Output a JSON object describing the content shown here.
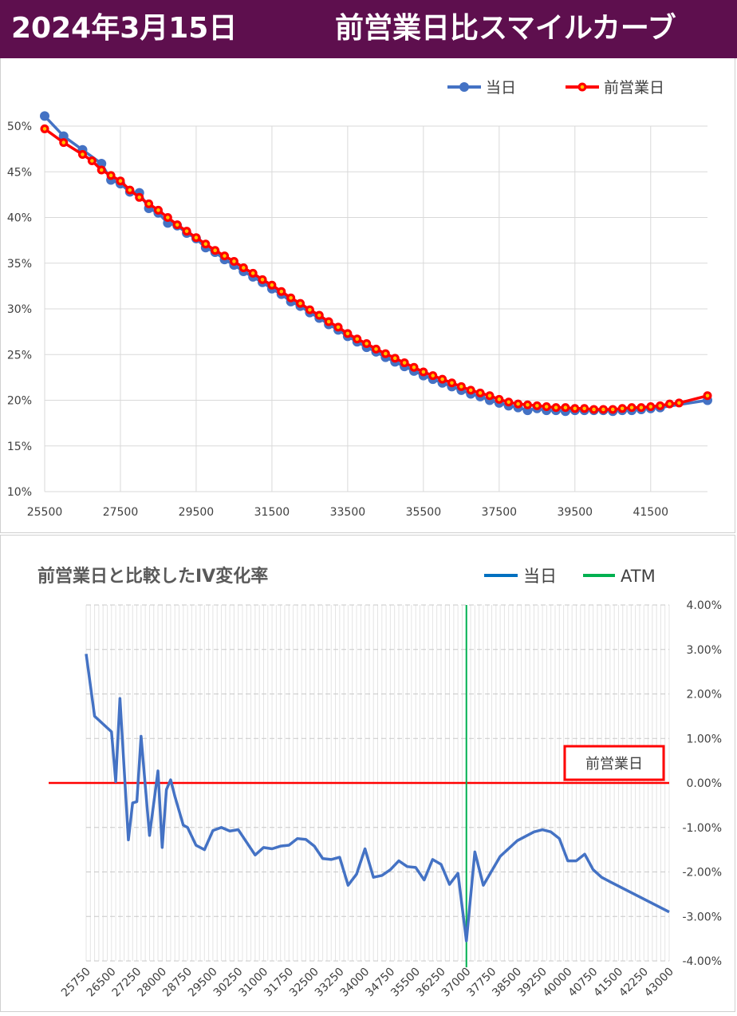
{
  "header": {
    "date": "2024年3月15日",
    "title": "前営業日比スマイルカーブ",
    "background": "#5e0f4e"
  },
  "chart_data": [
    {
      "type": "line",
      "title": "",
      "legend_position": "top-right",
      "grid": true,
      "xlim": [
        25500,
        43000
      ],
      "ylim": [
        0.1,
        0.5
      ],
      "x_ticks": [
        25500,
        27500,
        29500,
        31500,
        33500,
        35500,
        37500,
        39500,
        41500
      ],
      "x_tick_labels": [
        "25500",
        "27500",
        "29500",
        "31500",
        "33500",
        "35500",
        "37500",
        "39500",
        "41500"
      ],
      "y_ticks": [
        0.1,
        0.15,
        0.2,
        0.25,
        0.3,
        0.35,
        0.4,
        0.45,
        0.5
      ],
      "y_tick_labels": [
        "10%",
        "15%",
        "20%",
        "25%",
        "30%",
        "35%",
        "40%",
        "45%",
        "50%"
      ],
      "series": [
        {
          "name": "当日",
          "color": "#4472c4",
          "points": [
            [
              25500,
              0.511
            ],
            [
              26000,
              0.489
            ],
            [
              26500,
              0.474
            ],
            [
              27000,
              0.459
            ],
            [
              27250,
              0.441
            ],
            [
              27500,
              0.437
            ],
            [
              27750,
              0.428
            ],
            [
              28000,
              0.427
            ],
            [
              28250,
              0.41
            ],
            [
              28500,
              0.405
            ],
            [
              28750,
              0.394
            ],
            [
              29000,
              0.391
            ],
            [
              29250,
              0.383
            ],
            [
              29500,
              0.377
            ],
            [
              29750,
              0.367
            ],
            [
              30000,
              0.362
            ],
            [
              30250,
              0.354
            ],
            [
              30500,
              0.348
            ],
            [
              30750,
              0.341
            ],
            [
              31000,
              0.335
            ],
            [
              31250,
              0.329
            ],
            [
              31500,
              0.322
            ],
            [
              31750,
              0.316
            ],
            [
              32000,
              0.308
            ],
            [
              32250,
              0.303
            ],
            [
              32500,
              0.296
            ],
            [
              32750,
              0.29
            ],
            [
              33000,
              0.283
            ],
            [
              33250,
              0.277
            ],
            [
              33500,
              0.27
            ],
            [
              33750,
              0.264
            ],
            [
              34000,
              0.258
            ],
            [
              34250,
              0.253
            ],
            [
              34500,
              0.247
            ],
            [
              34750,
              0.242
            ],
            [
              35000,
              0.237
            ],
            [
              35250,
              0.232
            ],
            [
              35500,
              0.227
            ],
            [
              35750,
              0.223
            ],
            [
              36000,
              0.219
            ],
            [
              36250,
              0.215
            ],
            [
              36500,
              0.211
            ],
            [
              36750,
              0.207
            ],
            [
              37000,
              0.204
            ],
            [
              37250,
              0.2
            ],
            [
              37500,
              0.197
            ],
            [
              37750,
              0.194
            ],
            [
              38000,
              0.192
            ],
            [
              38250,
              0.189
            ],
            [
              38500,
              0.191
            ],
            [
              38750,
              0.189
            ],
            [
              39000,
              0.189
            ],
            [
              39250,
              0.188
            ],
            [
              39500,
              0.189
            ],
            [
              39750,
              0.189
            ],
            [
              40000,
              0.189
            ],
            [
              40250,
              0.189
            ],
            [
              40500,
              0.188
            ],
            [
              40750,
              0.189
            ],
            [
              41000,
              0.189
            ],
            [
              41250,
              0.19
            ],
            [
              41500,
              0.191
            ],
            [
              41750,
              0.192
            ],
            [
              43000,
              0.2
            ]
          ]
        },
        {
          "name": "前営業日",
          "color": "#ff0000",
          "points": [
            [
              25500,
              0.497
            ],
            [
              26000,
              0.482
            ],
            [
              26500,
              0.469
            ],
            [
              26750,
              0.462
            ],
            [
              27000,
              0.452
            ],
            [
              27250,
              0.446
            ],
            [
              27500,
              0.44
            ],
            [
              27750,
              0.43
            ],
            [
              28000,
              0.422
            ],
            [
              28250,
              0.415
            ],
            [
              28500,
              0.408
            ],
            [
              28750,
              0.4
            ],
            [
              29000,
              0.392
            ],
            [
              29250,
              0.385
            ],
            [
              29500,
              0.378
            ],
            [
              29750,
              0.371
            ],
            [
              30000,
              0.364
            ],
            [
              30250,
              0.358
            ],
            [
              30500,
              0.352
            ],
            [
              30750,
              0.345
            ],
            [
              31000,
              0.339
            ],
            [
              31250,
              0.332
            ],
            [
              31500,
              0.326
            ],
            [
              31750,
              0.319
            ],
            [
              32000,
              0.312
            ],
            [
              32250,
              0.306
            ],
            [
              32500,
              0.299
            ],
            [
              32750,
              0.293
            ],
            [
              33000,
              0.286
            ],
            [
              33250,
              0.28
            ],
            [
              33500,
              0.273
            ],
            [
              33750,
              0.267
            ],
            [
              34000,
              0.262
            ],
            [
              34250,
              0.256
            ],
            [
              34500,
              0.251
            ],
            [
              34750,
              0.246
            ],
            [
              35000,
              0.241
            ],
            [
              35250,
              0.236
            ],
            [
              35500,
              0.231
            ],
            [
              35750,
              0.227
            ],
            [
              36000,
              0.223
            ],
            [
              36250,
              0.219
            ],
            [
              36500,
              0.215
            ],
            [
              36750,
              0.211
            ],
            [
              37000,
              0.208
            ],
            [
              37250,
              0.205
            ],
            [
              37500,
              0.201
            ],
            [
              37750,
              0.198
            ],
            [
              38000,
              0.196
            ],
            [
              38250,
              0.195
            ],
            [
              38500,
              0.194
            ],
            [
              38750,
              0.193
            ],
            [
              39000,
              0.192
            ],
            [
              39250,
              0.192
            ],
            [
              39500,
              0.191
            ],
            [
              39750,
              0.191
            ],
            [
              40000,
              0.19
            ],
            [
              40250,
              0.19
            ],
            [
              40500,
              0.19
            ],
            [
              40750,
              0.191
            ],
            [
              41000,
              0.192
            ],
            [
              41250,
              0.192
            ],
            [
              41500,
              0.193
            ],
            [
              41750,
              0.194
            ],
            [
              42000,
              0.196
            ],
            [
              42250,
              0.197
            ],
            [
              43000,
              0.205
            ]
          ]
        }
      ]
    },
    {
      "type": "line",
      "title": "前営業日と比較したIV変化率",
      "legend_position": "top-right",
      "grid": true,
      "xlim": [
        25750,
        43000
      ],
      "ylim": [
        -0.04,
        0.04
      ],
      "x_tick_labels": [
        "25750",
        "26500",
        "27250",
        "28000",
        "28750",
        "29500",
        "30250",
        "31000",
        "31750",
        "32500",
        "33250",
        "34000",
        "34750",
        "35500",
        "36250",
        "37000",
        "37750",
        "38500",
        "39250",
        "40000",
        "40750",
        "41500",
        "42250",
        "43000"
      ],
      "y_ticks": [
        0.04,
        0.03,
        0.02,
        0.01,
        0.0,
        -0.01,
        -0.02,
        -0.03,
        -0.04
      ],
      "y_tick_labels": [
        "4.00%",
        "3.00%",
        "2.00%",
        "1.00%",
        "0.00%",
        "-1.00%",
        "-2.00%",
        "-3.00%",
        "-4.00%"
      ],
      "y_axis_side": "right",
      "series": [
        {
          "name": "当日",
          "color": "#4472c4",
          "points": [
            [
              25750,
              0.029
            ],
            [
              26000,
              0.015
            ],
            [
              26500,
              0.0115
            ],
            [
              26625,
              0.0003
            ],
            [
              26750,
              0.019
            ],
            [
              27000,
              -0.0128
            ],
            [
              27125,
              -0.0045
            ],
            [
              27250,
              -0.0042
            ],
            [
              27375,
              0.0105
            ],
            [
              27625,
              -0.0118
            ],
            [
              27875,
              0.0027
            ],
            [
              28000,
              -0.0145
            ],
            [
              28125,
              -0.0015
            ],
            [
              28250,
              0.0007
            ],
            [
              28375,
              -0.003
            ],
            [
              28625,
              -0.0095
            ],
            [
              28750,
              -0.01
            ],
            [
              29000,
              -0.014
            ],
            [
              29250,
              -0.015
            ],
            [
              29500,
              -0.0107
            ],
            [
              29750,
              -0.01
            ],
            [
              30000,
              -0.0108
            ],
            [
              30250,
              -0.0105
            ],
            [
              30750,
              -0.0162
            ],
            [
              31000,
              -0.0145
            ],
            [
              31250,
              -0.0148
            ],
            [
              31500,
              -0.0142
            ],
            [
              31750,
              -0.014
            ],
            [
              32000,
              -0.0125
            ],
            [
              32250,
              -0.0127
            ],
            [
              32500,
              -0.0142
            ],
            [
              32750,
              -0.017
            ],
            [
              33000,
              -0.0172
            ],
            [
              33250,
              -0.0167
            ],
            [
              33500,
              -0.023
            ],
            [
              33750,
              -0.0205
            ],
            [
              34000,
              -0.0148
            ],
            [
              34250,
              -0.0212
            ],
            [
              34500,
              -0.0208
            ],
            [
              34750,
              -0.0195
            ],
            [
              35000,
              -0.0175
            ],
            [
              35250,
              -0.0188
            ],
            [
              35500,
              -0.019
            ],
            [
              35750,
              -0.0218
            ],
            [
              36000,
              -0.0172
            ],
            [
              36250,
              -0.0183
            ],
            [
              36500,
              -0.0228
            ],
            [
              36750,
              -0.0203
            ],
            [
              37000,
              -0.0355
            ],
            [
              37250,
              -0.0155
            ],
            [
              37500,
              -0.023
            ],
            [
              38000,
              -0.0165
            ],
            [
              38500,
              -0.013
            ],
            [
              39000,
              -0.011
            ],
            [
              39250,
              -0.0105
            ],
            [
              39500,
              -0.011
            ],
            [
              39750,
              -0.0125
            ],
            [
              40000,
              -0.0175
            ],
            [
              40250,
              -0.0175
            ],
            [
              40500,
              -0.016
            ],
            [
              40750,
              -0.0195
            ],
            [
              41000,
              -0.0212
            ],
            [
              41250,
              -0.0222
            ],
            [
              43000,
              -0.029
            ]
          ]
        },
        {
          "name": "ATM",
          "color": "#00b050",
          "x": 37000
        }
      ],
      "reference_line": {
        "label": "前営業日",
        "value": 0.0,
        "color": "#ff0000"
      }
    }
  ]
}
